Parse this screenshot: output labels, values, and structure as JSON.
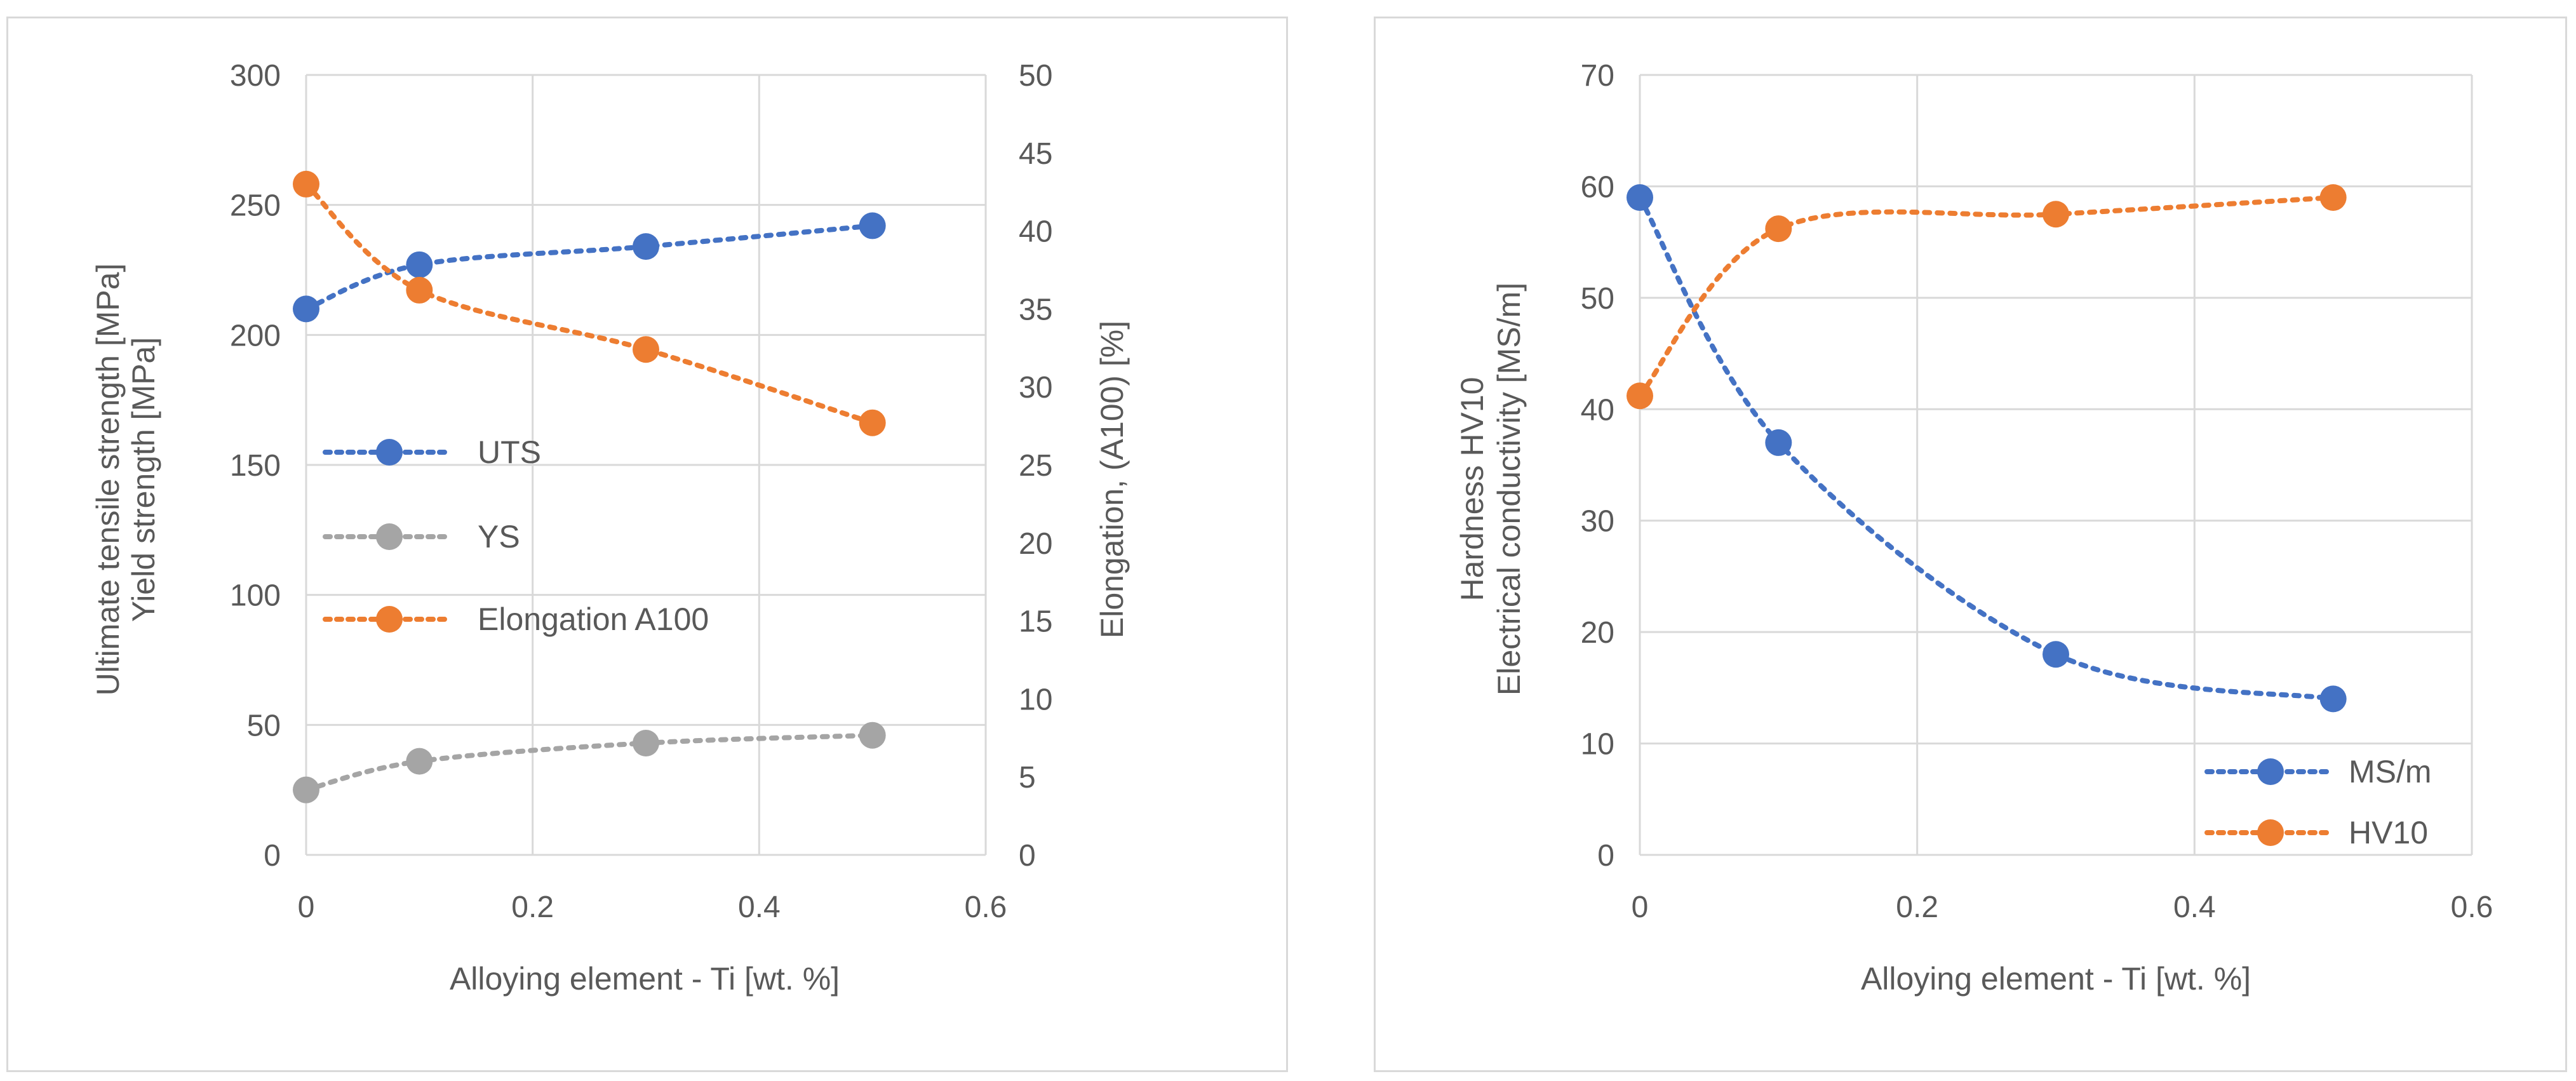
{
  "chart_data": [
    {
      "type": "line",
      "title": "",
      "xlabel": "Alloying element - Ti [wt. %]",
      "ylabel_lines": [
        "Ultimate tensile strength [MPa]",
        "Yield strength [MPa]"
      ],
      "y2label": "Elongation, (A100) [%]",
      "xlim": [
        0,
        0.6
      ],
      "ylim": [
        0,
        300
      ],
      "y2lim": [
        0,
        50
      ],
      "x_ticks": [
        "0",
        "0.2",
        "0.4",
        "0.6"
      ],
      "y_ticks": [
        "0",
        "50",
        "100",
        "150",
        "200",
        "250",
        "300"
      ],
      "y2_ticks": [
        "0",
        "5",
        "10",
        "15",
        "20",
        "25",
        "30",
        "35",
        "40",
        "45",
        "50"
      ],
      "grid": true,
      "legend_position": "center-left",
      "x": [
        0,
        0.1,
        0.3,
        0.5
      ],
      "series": [
        {
          "name": "UTS",
          "axis": "left",
          "color": "#4472c4",
          "values": [
            210,
            227,
            234,
            242
          ]
        },
        {
          "name": "YS",
          "axis": "left",
          "color": "#a5a5a5",
          "values": [
            25,
            36,
            43,
            46
          ]
        },
        {
          "name": "Elongation A100",
          "axis": "right",
          "color": "#ed7d31",
          "values": [
            43,
            36.2,
            32.4,
            27.7
          ]
        }
      ]
    },
    {
      "type": "line",
      "title": "",
      "xlabel": "Alloying element - Ti [wt. %]",
      "ylabel_lines": [
        "Hardness HV10",
        "Electrical conductivity [MS/m]"
      ],
      "xlim": [
        0,
        0.6
      ],
      "ylim": [
        0,
        70
      ],
      "x_ticks": [
        "0",
        "0.2",
        "0.4",
        "0.6"
      ],
      "y_ticks": [
        "0",
        "10",
        "20",
        "30",
        "40",
        "50",
        "60",
        "70"
      ],
      "grid": true,
      "legend_position": "bottom-right",
      "x": [
        0,
        0.1,
        0.3,
        0.5
      ],
      "series": [
        {
          "name": "MS/m",
          "color": "#4472c4",
          "values": [
            59,
            37,
            18,
            14
          ]
        },
        {
          "name": "HV10",
          "color": "#ed7d31",
          "values": [
            41.2,
            56.2,
            57.5,
            59
          ]
        }
      ]
    }
  ]
}
